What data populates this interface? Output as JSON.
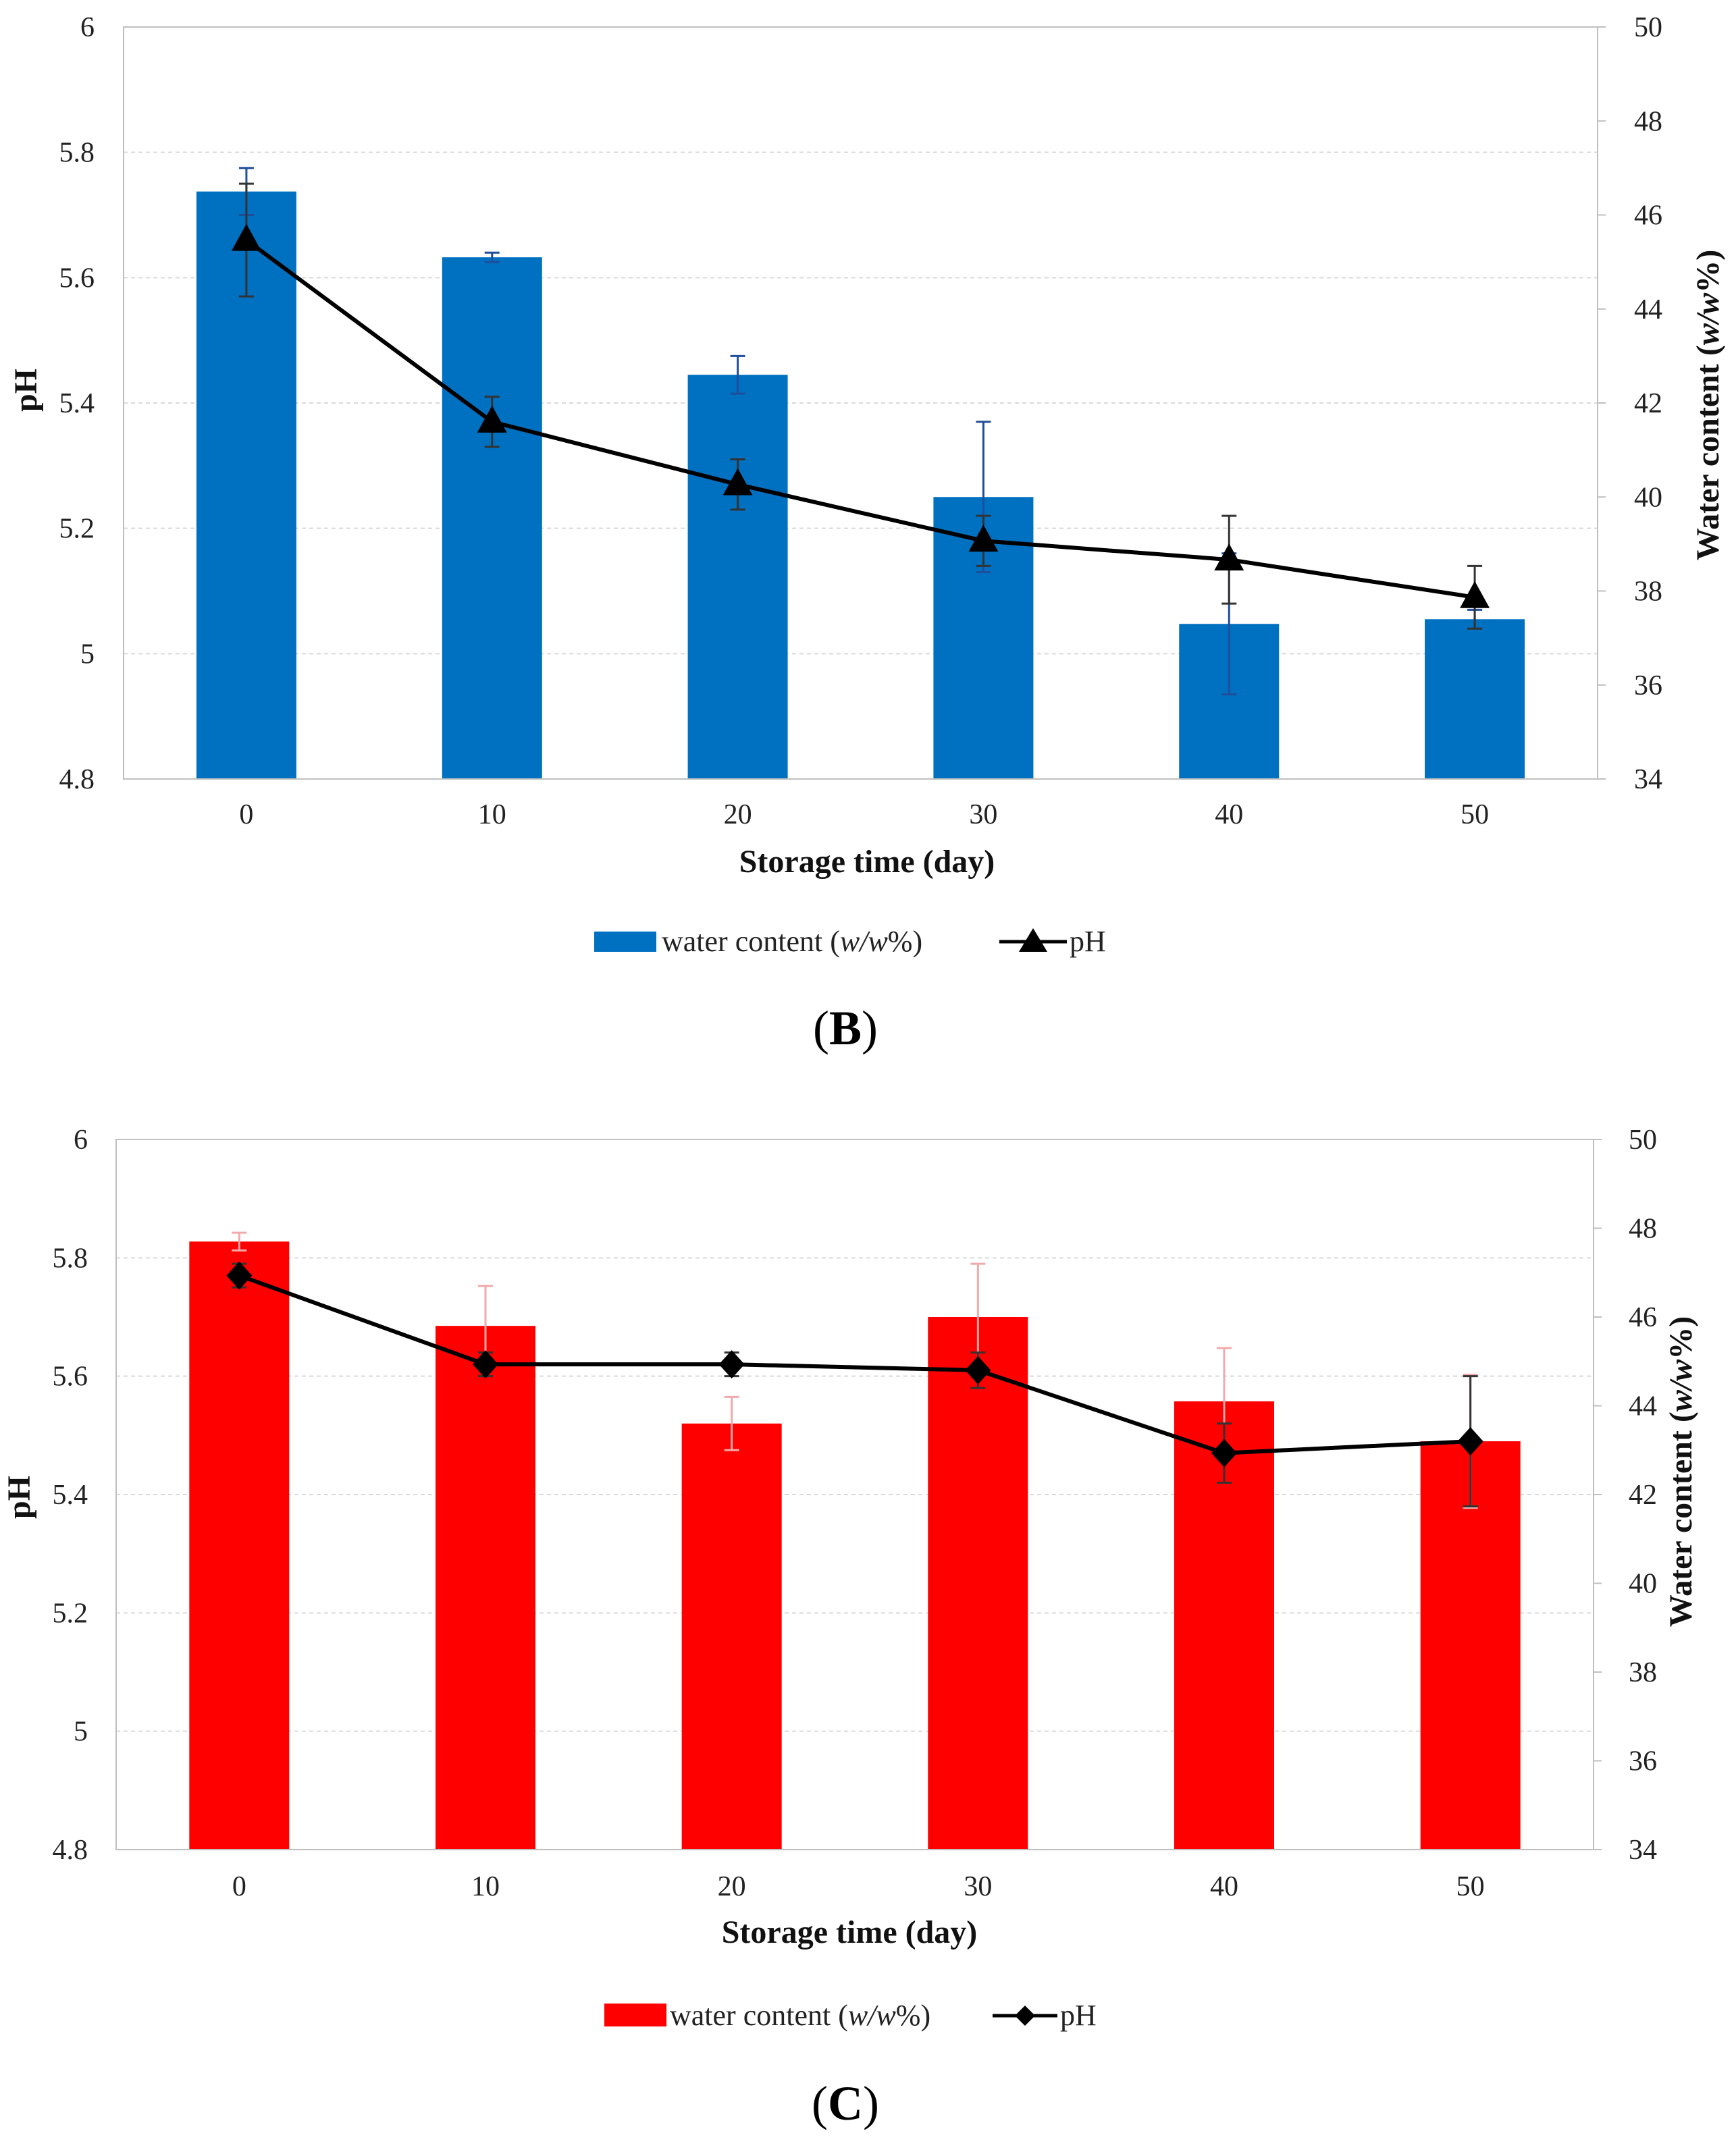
{
  "chart_data": [
    {
      "type": "bar",
      "panel": "B",
      "bar_color": "#0070C0",
      "errorbar_color": "#1F4E9A",
      "line_color": "#000000",
      "marker": "triangle",
      "categories": [
        "0",
        "10",
        "20",
        "30",
        "40",
        "50"
      ],
      "xlabel": "Storage time (day)",
      "ylabel_left": "pH",
      "ylabel_right_prefix": "Water content (",
      "ylabel_right_italic": "w/w",
      "ylabel_right_suffix": "%)",
      "ylim_left": [
        4.8,
        6
      ],
      "yticks_left": [
        "4.8",
        "5",
        "5.2",
        "5.4",
        "5.6",
        "5.8",
        "6"
      ],
      "ylim_right": [
        34,
        50
      ],
      "yticks_right": [
        "34",
        "36",
        "38",
        "40",
        "42",
        "44",
        "46",
        "48",
        "50"
      ],
      "series": [
        {
          "name": "water content (w/w%)",
          "axis": "right",
          "kind": "bar",
          "values": [
            46.5,
            45.1,
            42.6,
            40.0,
            37.3,
            37.4
          ],
          "errors": [
            0.5,
            0.1,
            0.4,
            1.6,
            1.5,
            0.2
          ]
        },
        {
          "name": "pH",
          "axis": "left",
          "kind": "line",
          "values": [
            5.66,
            5.37,
            5.27,
            5.18,
            5.15,
            5.09
          ],
          "errors": [
            0.09,
            0.04,
            0.04,
            0.04,
            0.07,
            0.05
          ]
        }
      ],
      "legend": {
        "bar_prefix": "water content (",
        "bar_italic": "w/w",
        "bar_suffix": "%)",
        "line_label": "pH"
      }
    },
    {
      "type": "bar",
      "panel": "C",
      "bar_color": "#FF0000",
      "errorbar_color": "#F0AAAA",
      "line_color": "#000000",
      "marker": "diamond",
      "categories": [
        "0",
        "10",
        "20",
        "30",
        "40",
        "50"
      ],
      "xlabel": "Storage time (day)",
      "ylabel_left": "pH",
      "ylabel_right_prefix": "Water content (",
      "ylabel_right_italic": "w/w",
      "ylabel_right_suffix": "%)",
      "ylim_left": [
        4.8,
        6
      ],
      "yticks_left": [
        "4.8",
        "5",
        "5.2",
        "5.4",
        "5.6",
        "5.8",
        "6"
      ],
      "ylim_right": [
        34,
        50
      ],
      "yticks_right": [
        "34",
        "36",
        "38",
        "40",
        "42",
        "44",
        "46",
        "48",
        "50"
      ],
      "series": [
        {
          "name": "water content (w/w%)",
          "axis": "right",
          "kind": "bar",
          "values": [
            47.7,
            45.8,
            43.6,
            46.0,
            44.1,
            43.2
          ],
          "errors": [
            0.2,
            0.9,
            0.6,
            1.2,
            1.2,
            1.5
          ]
        },
        {
          "name": "pH",
          "axis": "left",
          "kind": "line",
          "values": [
            5.77,
            5.62,
            5.62,
            5.61,
            5.47,
            5.49
          ],
          "errors": [
            0.02,
            0.02,
            0.02,
            0.03,
            0.05,
            0.11
          ]
        }
      ],
      "legend": {
        "bar_prefix": "water content (",
        "bar_italic": "w/w",
        "bar_suffix": "%)",
        "line_label": "pH"
      }
    }
  ],
  "panel_labels": {
    "b_open": "(",
    "b_letter": "B",
    "b_close": ")",
    "c_open": "(",
    "c_letter": "C",
    "c_close": ")"
  }
}
